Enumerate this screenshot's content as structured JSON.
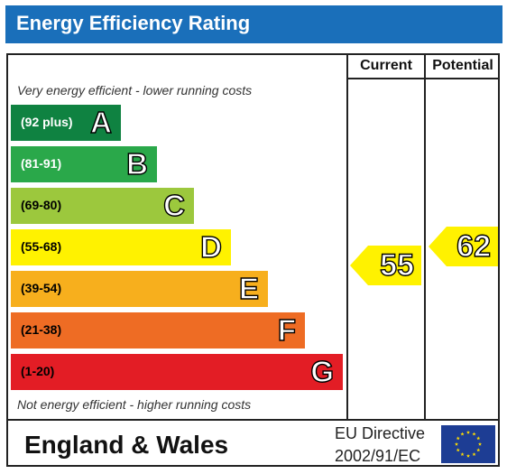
{
  "title": "Energy Efficiency Rating",
  "columns": {
    "current": "Current",
    "potential": "Potential"
  },
  "captions": {
    "top": "Very energy efficient - lower running costs",
    "bottom": "Not energy efficient - higher running costs"
  },
  "bands": [
    {
      "range": "(92 plus)",
      "letter": "A",
      "color": "#0f8241",
      "range_color": "#ffffff"
    },
    {
      "range": "(81-91)",
      "letter": "B",
      "color": "#2aa84a",
      "range_color": "#ffffff"
    },
    {
      "range": "(69-80)",
      "letter": "C",
      "color": "#9cc83d",
      "range_color": "#000000"
    },
    {
      "range": "(55-68)",
      "letter": "D",
      "color": "#fff200",
      "range_color": "#000000"
    },
    {
      "range": "(39-54)",
      "letter": "E",
      "color": "#f7af1d",
      "range_color": "#000000"
    },
    {
      "range": "(21-38)",
      "letter": "F",
      "color": "#ee6c24",
      "range_color": "#000000"
    },
    {
      "range": "(1-20)",
      "letter": "G",
      "color": "#e31d25",
      "range_color": "#000000"
    }
  ],
  "ratings": {
    "current": {
      "value": "55",
      "band": "D",
      "color": "#fff200"
    },
    "potential": {
      "value": "62",
      "band": "D",
      "color": "#fff200"
    }
  },
  "footer": {
    "country": "England & Wales",
    "directive_line1": "EU Directive",
    "directive_line2": "2002/91/EC"
  },
  "colors": {
    "title_bar": "#1a6fba",
    "eu_flag": "#1d3d94",
    "eu_stars": "#ffdd00"
  },
  "icons": {
    "eu_flag": "eu-flag-icon"
  }
}
